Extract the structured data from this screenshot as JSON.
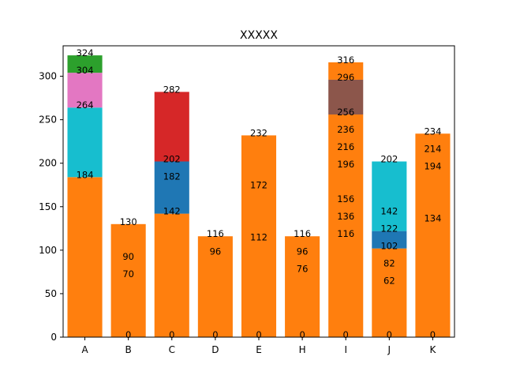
{
  "chart_data": {
    "type": "bar",
    "stacked": true,
    "title": "XXXXX",
    "xlabel": "",
    "ylabel": "",
    "categories": [
      "A",
      "B",
      "C",
      "D",
      "E",
      "H",
      "I",
      "J",
      "K"
    ],
    "ylim": [
      0,
      335
    ],
    "yticks": [
      0,
      50,
      100,
      150,
      200,
      250,
      300
    ],
    "grid": false,
    "legend": "none",
    "segments": [
      {
        "category": "A",
        "bottom": 0,
        "top": 184,
        "color": "#ff7f0e"
      },
      {
        "category": "A",
        "bottom": 184,
        "top": 264,
        "color": "#17becf"
      },
      {
        "category": "A",
        "bottom": 264,
        "top": 304,
        "color": "#e377c2"
      },
      {
        "category": "A",
        "bottom": 304,
        "top": 324,
        "color": "#2ca02c"
      },
      {
        "category": "B",
        "bottom": 0,
        "top": 130,
        "color": "#ff7f0e"
      },
      {
        "category": "C",
        "bottom": 0,
        "top": 142,
        "color": "#ff7f0e"
      },
      {
        "category": "C",
        "bottom": 142,
        "top": 202,
        "color": "#1f77b4"
      },
      {
        "category": "C",
        "bottom": 202,
        "top": 282,
        "color": "#d62728"
      },
      {
        "category": "D",
        "bottom": 0,
        "top": 116,
        "color": "#ff7f0e"
      },
      {
        "category": "E",
        "bottom": 0,
        "top": 232,
        "color": "#ff7f0e"
      },
      {
        "category": "H",
        "bottom": 0,
        "top": 116,
        "color": "#ff7f0e"
      },
      {
        "category": "I",
        "bottom": 0,
        "top": 256,
        "color": "#ff7f0e"
      },
      {
        "category": "I",
        "bottom": 256,
        "top": 296,
        "color": "#8c564b"
      },
      {
        "category": "I",
        "bottom": 296,
        "top": 316,
        "color": "#ff7f0e"
      },
      {
        "category": "J",
        "bottom": 0,
        "top": 102,
        "color": "#ff7f0e"
      },
      {
        "category": "J",
        "bottom": 102,
        "top": 122,
        "color": "#1f77b4"
      },
      {
        "category": "J",
        "bottom": 122,
        "top": 202,
        "color": "#17becf"
      },
      {
        "category": "K",
        "bottom": 0,
        "top": 234,
        "color": "#ff7f0e"
      }
    ],
    "data_labels": [
      {
        "category": "A",
        "value": 324
      },
      {
        "category": "A",
        "value": 304
      },
      {
        "category": "A",
        "value": 264
      },
      {
        "category": "A",
        "value": 184
      },
      {
        "category": "B",
        "value": 130
      },
      {
        "category": "B",
        "value": 90
      },
      {
        "category": "B",
        "value": 70
      },
      {
        "category": "B",
        "value": 0
      },
      {
        "category": "C",
        "value": 282
      },
      {
        "category": "C",
        "value": 202
      },
      {
        "category": "C",
        "value": 182
      },
      {
        "category": "C",
        "value": 142
      },
      {
        "category": "C",
        "value": 0
      },
      {
        "category": "D",
        "value": 116
      },
      {
        "category": "D",
        "value": 96
      },
      {
        "category": "D",
        "value": 0
      },
      {
        "category": "E",
        "value": 232
      },
      {
        "category": "E",
        "value": 172
      },
      {
        "category": "E",
        "value": 112
      },
      {
        "category": "E",
        "value": 0
      },
      {
        "category": "H",
        "value": 116
      },
      {
        "category": "H",
        "value": 96
      },
      {
        "category": "H",
        "value": 76
      },
      {
        "category": "H",
        "value": 0
      },
      {
        "category": "I",
        "value": 316
      },
      {
        "category": "I",
        "value": 296
      },
      {
        "category": "I",
        "value": 256
      },
      {
        "category": "I",
        "value": 236
      },
      {
        "category": "I",
        "value": 216
      },
      {
        "category": "I",
        "value": 196
      },
      {
        "category": "I",
        "value": 156
      },
      {
        "category": "I",
        "value": 136
      },
      {
        "category": "I",
        "value": 116
      },
      {
        "category": "I",
        "value": 0
      },
      {
        "category": "J",
        "value": 202
      },
      {
        "category": "J",
        "value": 142
      },
      {
        "category": "J",
        "value": 122
      },
      {
        "category": "J",
        "value": 102
      },
      {
        "category": "J",
        "value": 82
      },
      {
        "category": "J",
        "value": 62
      },
      {
        "category": "J",
        "value": 0
      },
      {
        "category": "K",
        "value": 234
      },
      {
        "category": "K",
        "value": 214
      },
      {
        "category": "K",
        "value": 194
      },
      {
        "category": "K",
        "value": 134
      },
      {
        "category": "K",
        "value": 0
      }
    ]
  }
}
